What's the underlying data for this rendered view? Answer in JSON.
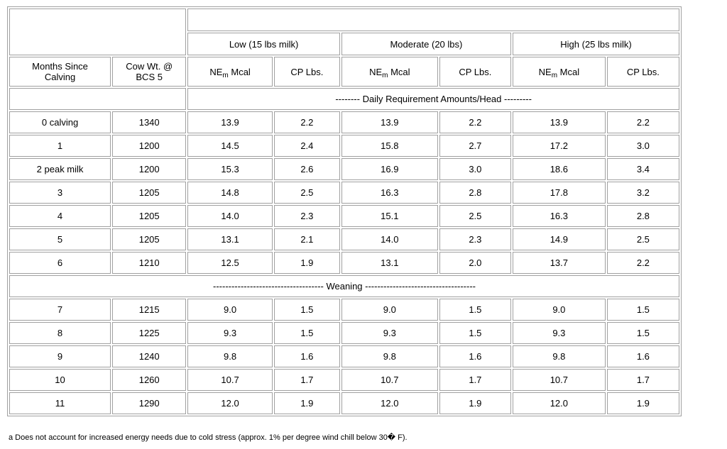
{
  "columns": {
    "months_since_calving": "Months Since Calving",
    "cow_wt": "Cow Wt. @ BCS 5",
    "nem_label": "NE",
    "nem_sub": "m",
    "nem_unit": " Mcal",
    "cp_label": "CP Lbs."
  },
  "groups": {
    "low": "Low (15 lbs milk)",
    "moderate": "Moderate (20 lbs)",
    "high": "High (25 lbs milk)"
  },
  "banners": {
    "daily": "-------- Daily Requirement Amounts/Head ---------",
    "weaning": "------------------------------------ Weaning ------------------------------------"
  },
  "rows_before_weaning": [
    {
      "month": "0 calving",
      "wt": "1340",
      "low_nem": "13.9",
      "low_cp": "2.2",
      "mod_nem": "13.9",
      "mod_cp": "2.2",
      "high_nem": "13.9",
      "high_cp": "2.2"
    },
    {
      "month": "1",
      "wt": "1200",
      "low_nem": "14.5",
      "low_cp": "2.4",
      "mod_nem": "15.8",
      "mod_cp": "2.7",
      "high_nem": "17.2",
      "high_cp": "3.0"
    },
    {
      "month": "2 peak milk",
      "wt": "1200",
      "low_nem": "15.3",
      "low_cp": "2.6",
      "mod_nem": "16.9",
      "mod_cp": "3.0",
      "high_nem": "18.6",
      "high_cp": "3.4"
    },
    {
      "month": "3",
      "wt": "1205",
      "low_nem": "14.8",
      "low_cp": "2.5",
      "mod_nem": "16.3",
      "mod_cp": "2.8",
      "high_nem": "17.8",
      "high_cp": "3.2"
    },
    {
      "month": "4",
      "wt": "1205",
      "low_nem": "14.0",
      "low_cp": "2.3",
      "mod_nem": "15.1",
      "mod_cp": "2.5",
      "high_nem": "16.3",
      "high_cp": "2.8"
    },
    {
      "month": "5",
      "wt": "1205",
      "low_nem": "13.1",
      "low_cp": "2.1",
      "mod_nem": "14.0",
      "mod_cp": "2.3",
      "high_nem": "14.9",
      "high_cp": "2.5"
    },
    {
      "month": "6",
      "wt": "1210",
      "low_nem": "12.5",
      "low_cp": "1.9",
      "mod_nem": "13.1",
      "mod_cp": "2.0",
      "high_nem": "13.7",
      "high_cp": "2.2"
    }
  ],
  "rows_after_weaning": [
    {
      "month": "7",
      "wt": "1215",
      "low_nem": "9.0",
      "low_cp": "1.5",
      "mod_nem": "9.0",
      "mod_cp": "1.5",
      "high_nem": "9.0",
      "high_cp": "1.5"
    },
    {
      "month": "8",
      "wt": "1225",
      "low_nem": "9.3",
      "low_cp": "1.5",
      "mod_nem": "9.3",
      "mod_cp": "1.5",
      "high_nem": "9.3",
      "high_cp": "1.5"
    },
    {
      "month": "9",
      "wt": "1240",
      "low_nem": "9.8",
      "low_cp": "1.6",
      "mod_nem": "9.8",
      "mod_cp": "1.6",
      "high_nem": "9.8",
      "high_cp": "1.6"
    },
    {
      "month": "10",
      "wt": "1260",
      "low_nem": "10.7",
      "low_cp": "1.7",
      "mod_nem": "10.7",
      "mod_cp": "1.7",
      "high_nem": "10.7",
      "high_cp": "1.7"
    },
    {
      "month": "11",
      "wt": "1290",
      "low_nem": "12.0",
      "low_cp": "1.9",
      "mod_nem": "12.0",
      "mod_cp": "1.9",
      "high_nem": "12.0",
      "high_cp": "1.9"
    }
  ],
  "footnote": "a Does not account for increased energy needs due to cold stress (approx. 1% per degree wind chill below 30� F)."
}
